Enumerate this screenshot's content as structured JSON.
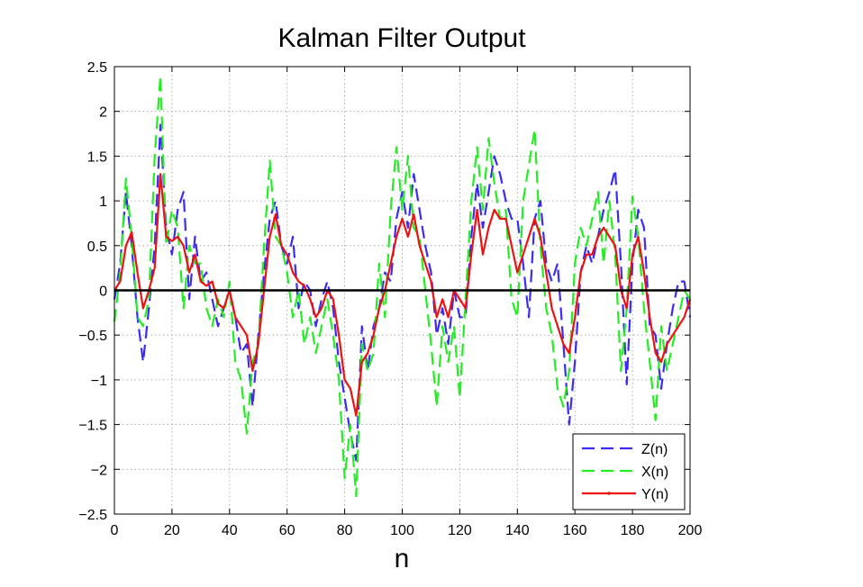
{
  "chart_data": {
    "type": "line",
    "title": "Kalman Filter Output",
    "xlabel": "n",
    "ylabel": "",
    "xlim": [
      0,
      200
    ],
    "ylim": [
      -2.5,
      2.5
    ],
    "xticks": [
      0,
      20,
      40,
      60,
      80,
      100,
      120,
      140,
      160,
      180,
      200
    ],
    "yticks": [
      -2.5,
      -2,
      -1.5,
      -1,
      -0.5,
      0,
      0.5,
      1,
      1.5,
      2,
      2.5
    ],
    "ytick_labels": [
      "−2.5",
      "−2",
      "−1.5",
      "−1",
      "−0.5",
      "0",
      "0.5",
      "1",
      "1.5",
      "2",
      "2.5"
    ],
    "grid": true,
    "legend_position": "bottom-right",
    "zero_line": {
      "y": 0,
      "color": "#000000"
    },
    "series": [
      {
        "name": "Z(n)",
        "color": "#3b2bf5",
        "style": "dashed",
        "x": [
          0,
          2,
          4,
          6,
          8,
          10,
          12,
          14,
          16,
          18,
          20,
          22,
          24,
          26,
          28,
          30,
          32,
          34,
          36,
          38,
          40,
          42,
          44,
          46,
          48,
          50,
          52,
          54,
          56,
          58,
          60,
          62,
          64,
          66,
          68,
          70,
          72,
          74,
          76,
          78,
          80,
          82,
          84,
          86,
          88,
          90,
          92,
          94,
          96,
          98,
          100,
          102,
          104,
          106,
          108,
          110,
          112,
          114,
          116,
          118,
          120,
          122,
          124,
          126,
          128,
          130,
          132,
          134,
          136,
          138,
          140,
          142,
          144,
          146,
          148,
          150,
          152,
          154,
          156,
          158,
          160,
          162,
          164,
          166,
          168,
          170,
          172,
          174,
          176,
          178,
          180,
          182,
          184,
          186,
          188,
          190,
          192,
          194,
          196,
          198,
          200
        ],
        "values": [
          -0.1,
          0.3,
          1.1,
          0.5,
          -0.3,
          -0.8,
          -0.2,
          0.5,
          1.85,
          0.7,
          0.4,
          0.9,
          1.1,
          -0.1,
          0.6,
          0.1,
          0.2,
          -0.1,
          -0.4,
          -0.2,
          0.0,
          -0.3,
          -0.7,
          -0.6,
          -1.3,
          -0.5,
          0.2,
          0.8,
          1.0,
          0.5,
          0.3,
          0.6,
          -0.2,
          0.1,
          0.0,
          -0.4,
          -0.1,
          0.1,
          -0.2,
          -0.8,
          -1.2,
          -1.6,
          -1.9,
          -0.4,
          -0.9,
          -0.4,
          -0.2,
          0.2,
          0.1,
          0.8,
          1.1,
          0.7,
          1.3,
          0.9,
          0.5,
          0.2,
          -0.5,
          -0.2,
          -0.6,
          0.0,
          -0.3,
          -0.3,
          0.6,
          1.2,
          0.7,
          1.1,
          1.5,
          1.3,
          1.0,
          0.8,
          0.8,
          0.3,
          -0.3,
          0.8,
          1.0,
          0.3,
          0.1,
          0.3,
          -0.6,
          -1.5,
          -0.8,
          0.2,
          0.5,
          0.3,
          0.6,
          0.9,
          1.1,
          1.35,
          0.3,
          -1.05,
          0.3,
          0.9,
          0.7,
          -0.4,
          -0.5,
          -1.1,
          -0.6,
          -0.2,
          0.1,
          0.1,
          -0.3
        ]
      },
      {
        "name": "X(n)",
        "color": "#22ee22",
        "style": "dashed",
        "x": [
          0,
          2,
          4,
          6,
          8,
          10,
          12,
          14,
          16,
          18,
          20,
          22,
          24,
          26,
          28,
          30,
          32,
          34,
          36,
          38,
          40,
          42,
          44,
          46,
          48,
          50,
          52,
          54,
          56,
          58,
          60,
          62,
          64,
          66,
          68,
          70,
          72,
          74,
          76,
          78,
          80,
          82,
          84,
          86,
          88,
          90,
          92,
          94,
          96,
          98,
          100,
          102,
          104,
          106,
          108,
          110,
          112,
          114,
          116,
          118,
          120,
          122,
          124,
          126,
          128,
          130,
          132,
          134,
          136,
          138,
          140,
          142,
          144,
          146,
          148,
          150,
          152,
          154,
          156,
          158,
          160,
          162,
          164,
          166,
          168,
          170,
          172,
          174,
          176,
          178,
          180,
          182,
          184,
          186,
          188,
          190,
          192,
          194,
          196,
          198,
          200
        ],
        "values": [
          -0.35,
          0.2,
          1.25,
          0.6,
          -0.3,
          -0.4,
          -0.1,
          1.5,
          2.4,
          0.5,
          0.9,
          0.7,
          -0.2,
          0.5,
          0.3,
          0.3,
          -0.2,
          -0.4,
          -0.1,
          -0.3,
          0.1,
          -0.8,
          -1.0,
          -1.6,
          -0.8,
          -0.6,
          0.5,
          1.45,
          0.6,
          0.5,
          0.2,
          -0.3,
          0.0,
          -0.6,
          -0.3,
          -0.7,
          -0.4,
          -0.1,
          -0.5,
          -1.0,
          -2.1,
          -1.5,
          -2.3,
          -0.6,
          -0.9,
          -0.7,
          0.3,
          -0.3,
          0.9,
          1.6,
          0.9,
          1.5,
          0.7,
          0.6,
          0.0,
          -0.6,
          -1.3,
          -0.4,
          -0.8,
          -0.4,
          -1.2,
          -0.1,
          1.0,
          1.6,
          0.9,
          1.7,
          1.2,
          0.8,
          0.9,
          -0.1,
          -0.3,
          1.0,
          1.4,
          1.8,
          0.5,
          -0.2,
          -0.5,
          -1.1,
          -1.3,
          -0.9,
          0.3,
          0.7,
          0.5,
          0.8,
          1.1,
          0.3,
          1.0,
          0.4,
          -0.9,
          -0.2,
          1.05,
          0.6,
          -0.2,
          -0.8,
          -1.45,
          -0.4,
          -0.9,
          -0.6,
          -0.3,
          0.0,
          -0.1
        ]
      },
      {
        "name": "Y(n)",
        "color": "#ee1111",
        "style": "solid",
        "x": [
          0,
          2,
          4,
          6,
          8,
          10,
          12,
          14,
          16,
          18,
          20,
          22,
          24,
          26,
          28,
          30,
          32,
          34,
          36,
          38,
          40,
          42,
          44,
          46,
          48,
          50,
          52,
          54,
          56,
          58,
          60,
          62,
          64,
          66,
          68,
          70,
          72,
          74,
          76,
          78,
          80,
          82,
          84,
          86,
          88,
          90,
          92,
          94,
          96,
          98,
          100,
          102,
          104,
          106,
          108,
          110,
          112,
          114,
          116,
          118,
          120,
          122,
          124,
          126,
          128,
          130,
          132,
          134,
          136,
          138,
          140,
          142,
          144,
          146,
          148,
          150,
          152,
          154,
          156,
          158,
          160,
          162,
          164,
          166,
          168,
          170,
          172,
          174,
          176,
          178,
          180,
          182,
          184,
          186,
          188,
          190,
          192,
          194,
          196,
          198,
          200
        ],
        "values": [
          0.0,
          0.1,
          0.5,
          0.65,
          0.2,
          -0.2,
          0.0,
          0.25,
          1.3,
          0.6,
          0.55,
          0.6,
          0.5,
          0.2,
          0.4,
          0.1,
          0.05,
          0.1,
          -0.15,
          -0.2,
          0.0,
          -0.3,
          -0.4,
          -0.5,
          -0.9,
          -0.6,
          0.0,
          0.6,
          0.85,
          0.5,
          0.4,
          0.2,
          0.1,
          0.05,
          -0.1,
          -0.3,
          -0.2,
          0.0,
          -0.1,
          -0.5,
          -1.0,
          -1.1,
          -1.4,
          -0.8,
          -0.7,
          -0.5,
          -0.2,
          0.0,
          0.3,
          0.6,
          0.8,
          0.6,
          0.85,
          0.5,
          0.3,
          0.1,
          -0.3,
          -0.1,
          -0.3,
          0.0,
          -0.1,
          -0.2,
          0.4,
          0.9,
          0.4,
          0.7,
          0.9,
          0.8,
          0.8,
          0.5,
          0.2,
          0.4,
          0.6,
          0.8,
          0.6,
          0.2,
          -0.2,
          -0.4,
          -0.6,
          -0.7,
          -0.3,
          0.2,
          0.4,
          0.4,
          0.6,
          0.7,
          0.6,
          0.5,
          0.0,
          -0.2,
          0.4,
          0.6,
          0.2,
          -0.3,
          -0.7,
          -0.8,
          -0.6,
          -0.5,
          -0.4,
          -0.3,
          -0.1
        ]
      }
    ]
  }
}
